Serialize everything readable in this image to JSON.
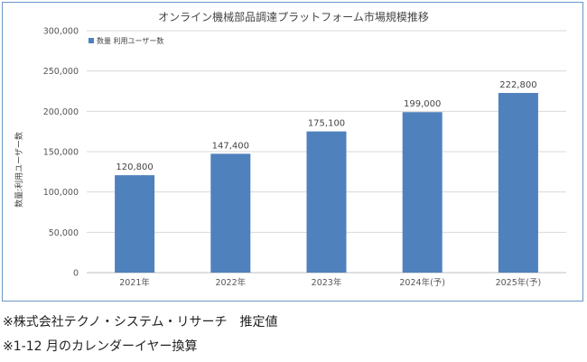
{
  "chart_data": {
    "type": "bar",
    "title": "オンライン機械部品調達プラットフォーム市場規模推移",
    "ylabel": "数量:利用ユーザー数",
    "legend": {
      "label": "数量 利用ユーザー数",
      "placement": "top-left"
    },
    "categories": [
      "2021年",
      "2022年",
      "2023年",
      "2024年(予)",
      "2025年(予)"
    ],
    "values": [
      120800,
      147400,
      175100,
      199000,
      222800
    ],
    "value_labels": [
      "120,800",
      "147,400",
      "175,100",
      "199,000",
      "222,800"
    ],
    "yticks": [
      "0",
      "50,000",
      "100,000",
      "150,000",
      "200,000",
      "250,000",
      "300,000"
    ],
    "ylim": [
      0,
      300000
    ],
    "grid": true,
    "bar_color": "#4f81bd"
  },
  "notes": [
    "※株式会社テクノ・システム・リサーチ　推定値",
    "※1-12 月のカレンダーイヤー換算"
  ]
}
